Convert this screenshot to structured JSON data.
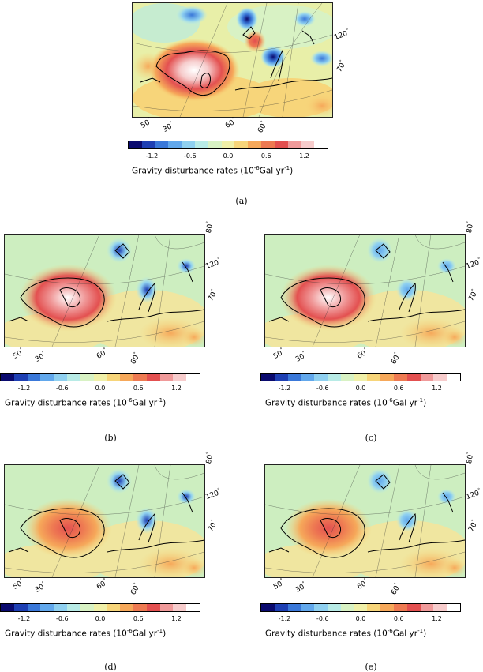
{
  "colorbar": {
    "ticks": [
      "-1.2",
      "-0.6",
      "0.0",
      "0.6",
      "1.2"
    ],
    "label_main": "Gravity disturbance rates (10",
    "label_exp": "-6",
    "label_unit": "Gal yr",
    "label_exp2": "-1",
    "label_end": ")",
    "colors": [
      "#0a0a6e",
      "#1e3fb3",
      "#3a78d9",
      "#62a8ec",
      "#8fd0f0",
      "#b8ebe6",
      "#d8f2c4",
      "#f0f0a8",
      "#f7d57a",
      "#f6a85a",
      "#ee7a52",
      "#e35050",
      "#f09a9a",
      "#f7cccc",
      "#ffffff"
    ]
  },
  "graticule": {
    "lon_labels": [
      "50",
      "30",
      "60",
      "60"
    ],
    "lat_labels": [
      "80",
      "70"
    ],
    "lon_label_right": "120"
  },
  "panels": [
    {
      "caption": "(a)",
      "intensity": 1.0
    },
    {
      "caption": "(b)",
      "intensity": 0.85
    },
    {
      "caption": "(c)",
      "intensity": 0.8
    },
    {
      "caption": "(d)",
      "intensity": 0.55
    },
    {
      "caption": "(e)",
      "intensity": 0.5
    }
  ]
}
